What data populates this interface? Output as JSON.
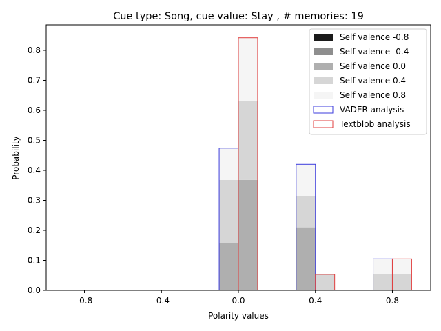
{
  "chart_data": {
    "type": "bar",
    "title": "Cue type: Song, cue value: Stay , # memories: 19",
    "xlabel": "Polarity values",
    "ylabel": "Probability",
    "categories": [
      "-0.8",
      "-0.4",
      "0.0",
      "0.4",
      "0.8"
    ],
    "x": [
      -0.8,
      -0.4,
      0.0,
      0.4,
      0.8
    ],
    "xlim": [
      -0.9988,
      0.9988
    ],
    "ylim": [
      0,
      0.885
    ],
    "yticks": [
      "0.0",
      "0.1",
      "0.2",
      "0.3",
      "0.4",
      "0.5",
      "0.6",
      "0.7",
      "0.8"
    ],
    "bar_width": 0.1,
    "legend_position": "top-right",
    "stack_series": [
      {
        "name": "Self valence -0.8",
        "color": "#1a1a1a"
      },
      {
        "name": "Self valence -0.4",
        "color": "#8e8e8e"
      },
      {
        "name": "Self valence 0.0",
        "color": "#afafaf"
      },
      {
        "name": "Self valence 0.4",
        "color": "#d6d6d6"
      },
      {
        "name": "Self valence 0.8",
        "color": "#f5f5f5"
      }
    ],
    "series": [
      {
        "name": "VADER analysis",
        "edge_color": "#3b3bdc",
        "offset": -0.05,
        "stacks": [
          [
            0,
            0,
            0,
            0,
            0
          ],
          [
            0,
            0,
            0,
            0,
            0
          ],
          [
            0,
            0,
            0.158,
            0.21,
            0.0
          ],
          [
            0,
            0,
            0.21,
            0.105,
            0.053
          ],
          [
            0,
            0,
            0.106,
            0.105,
            0.052
          ]
        ]
      },
      {
        "name": "Textblob analysis",
        "edge_color": "#e03c3c",
        "offset": 0.05,
        "stacks": [
          [
            0,
            0,
            0,
            0,
            0
          ],
          [
            0,
            0,
            0,
            0,
            0
          ],
          [
            0,
            0,
            0.368,
            0.0,
            0.0
          ],
          [
            0,
            0,
            0.264,
            0.053,
            0.053
          ],
          [
            0,
            0,
            0.21,
            0.0,
            0.052
          ]
        ]
      }
    ]
  }
}
